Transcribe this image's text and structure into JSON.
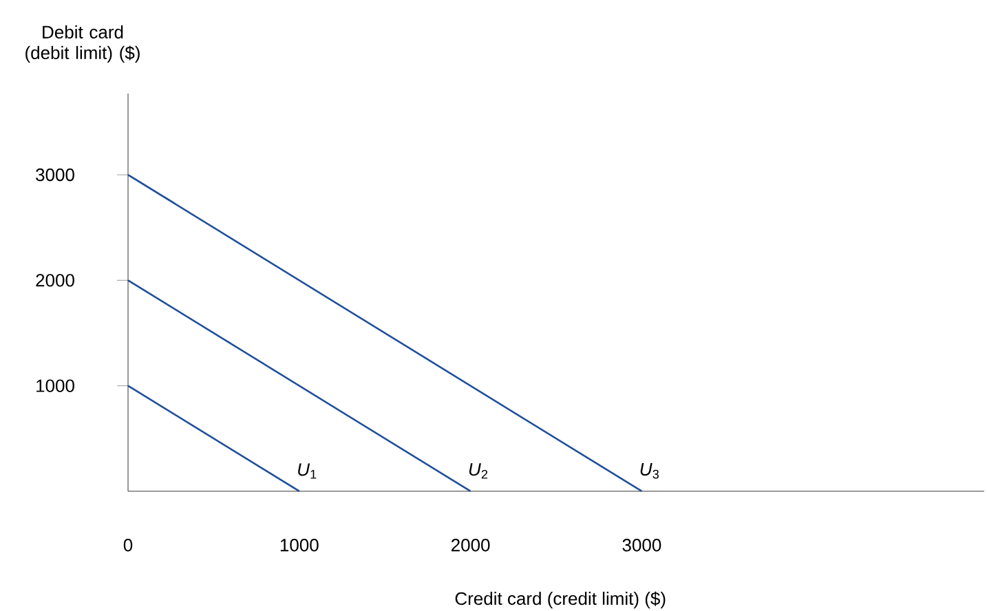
{
  "chart_data": {
    "type": "line",
    "xlabel": "Credit card (credit limit) ($)",
    "ylabel": "Debit card (debit limit) ($)",
    "xlim": [
      0,
      5000
    ],
    "ylim": [
      0,
      3770
    ],
    "xticks": [
      0,
      1000,
      2000,
      3000
    ],
    "yticks": [
      1000,
      2000,
      3000
    ],
    "series": [
      {
        "name": "*U*$_{1}$",
        "color": "#1f4f9a",
        "x": [
          0,
          1000
        ],
        "values": [
          1000,
          0
        ]
      },
      {
        "name": "*U*$_{2}$",
        "color": "#1f4f9a",
        "x": [
          0,
          2000
        ],
        "values": [
          2000,
          0
        ]
      },
      {
        "name": "*U*$_{3}$",
        "color": "#1f4f9a",
        "x": [
          0,
          3000
        ],
        "values": [
          3000,
          0
        ]
      }
    ]
  }
}
